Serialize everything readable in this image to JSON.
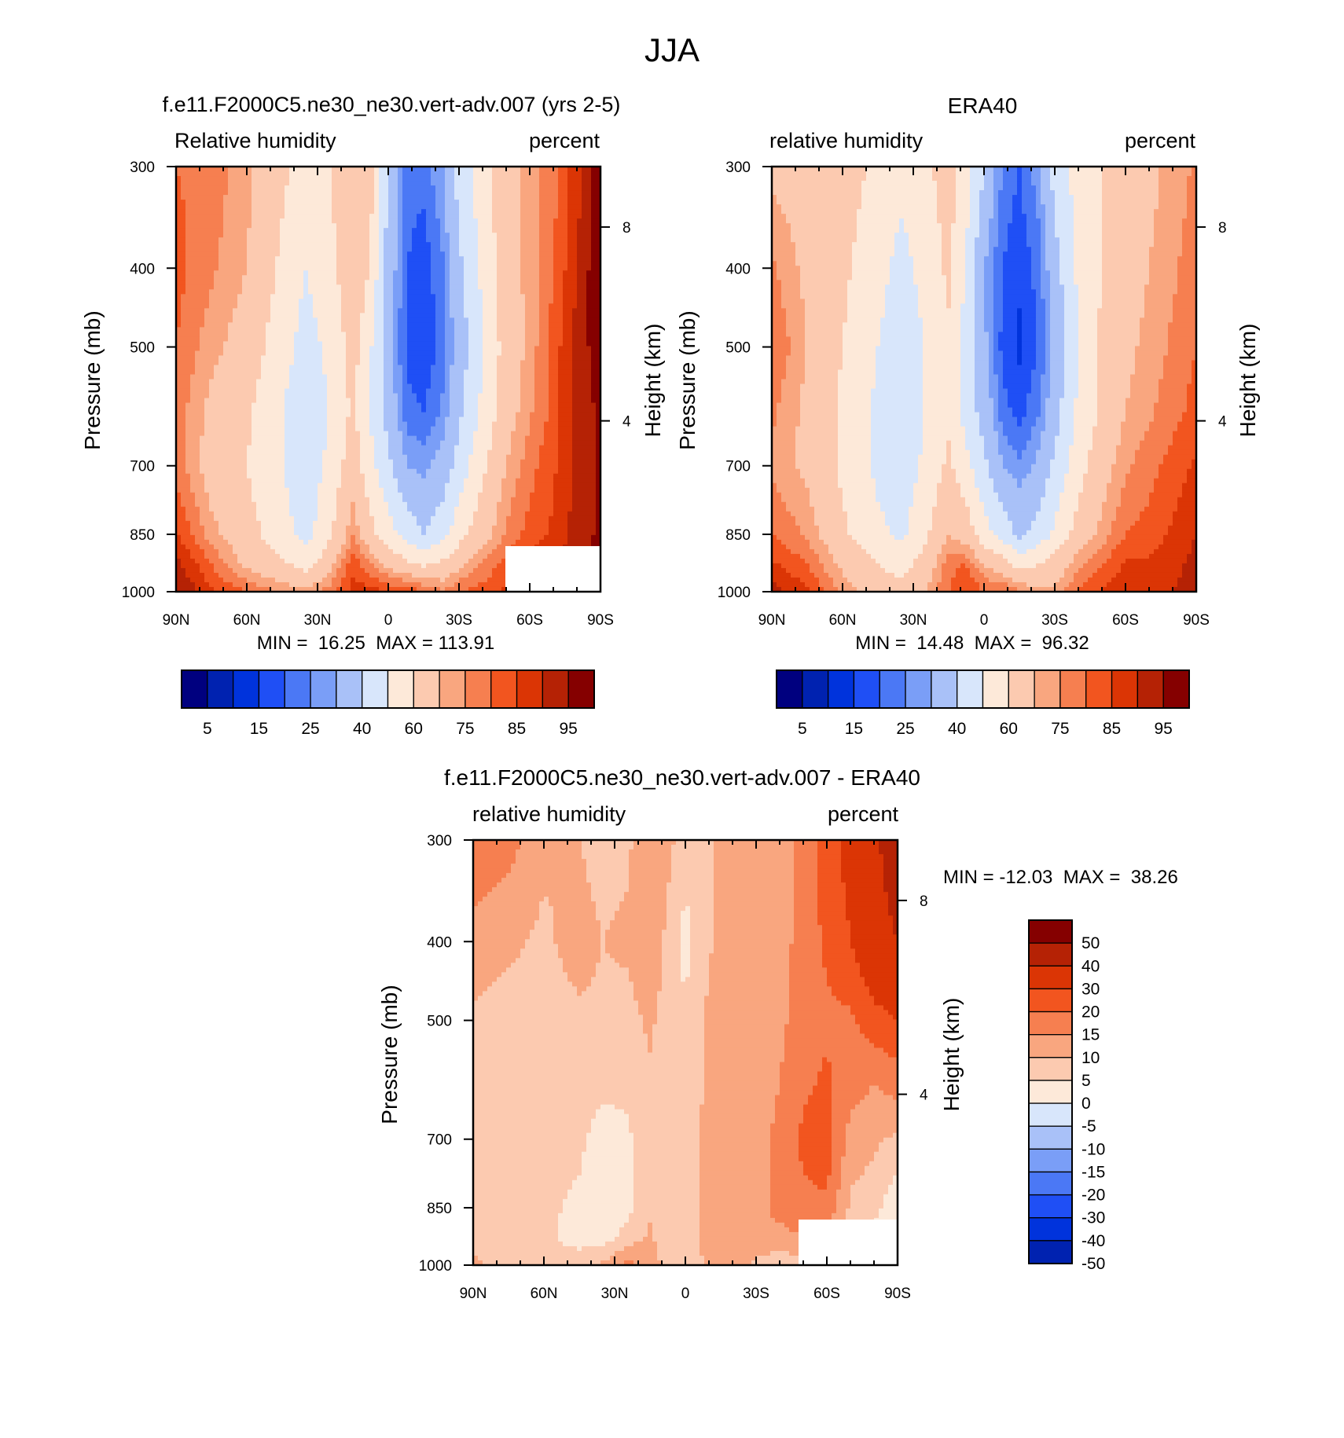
{
  "figure_title": "JJA",
  "colors": {
    "main_levels": [
      5,
      10,
      15,
      20,
      25,
      30,
      40,
      50,
      60,
      70,
      75,
      80,
      85,
      90,
      95
    ],
    "main_labels": [
      "5",
      "15",
      "25",
      "40",
      "60",
      "75",
      "85",
      "95"
    ],
    "main_palette": [
      "#00007f",
      "#0022b0",
      "#0033dc",
      "#1f4ff5",
      "#4b78f5",
      "#7a9ef7",
      "#a9c1f8",
      "#d8e6fb",
      "#fde9d9",
      "#fccab0",
      "#f9a67f",
      "#f67f50",
      "#f2551f",
      "#db3505",
      "#b52205",
      "#850000"
    ],
    "diff_levels": [
      -50,
      -40,
      -30,
      -20,
      -15,
      -10,
      -5,
      0,
      5,
      10,
      15,
      20,
      30,
      40,
      50
    ],
    "diff_labels": [
      "50",
      "40",
      "30",
      "20",
      "15",
      "10",
      "5",
      "0",
      "-5",
      "-10",
      "-15",
      "-20",
      "-30",
      "-40",
      "-50"
    ]
  },
  "chart_data": [
    {
      "type": "heatmap",
      "title": "f.e11.F2000C5.ne30_ne30.vert-adv.007 (yrs 2-5)",
      "left_label": "Relative humidity",
      "right_label": "percent",
      "ylabel": "Pressure (mb)",
      "ylabel2": "Height (km)",
      "x_ticks": [
        "90N",
        "60N",
        "30N",
        "0",
        "30S",
        "60S",
        "90S"
      ],
      "x_values": [
        90,
        60,
        30,
        0,
        -30,
        -60,
        -90
      ],
      "y_ticks": [
        "300",
        "400",
        "500",
        "700",
        "850",
        "1000"
      ],
      "y_values": [
        300,
        400,
        500,
        700,
        850,
        1000
      ],
      "y2_ticks": [
        "8",
        "4"
      ],
      "y2_values": [
        8,
        4
      ],
      "xlim": [
        90,
        -90
      ],
      "ylim": [
        300,
        1000
      ],
      "y_scale": "log",
      "stats": "MIN =  16.25  MAX = 113.91",
      "min": 16.25,
      "max": 113.91,
      "field": [
        {
          "lat": 90,
          "p": [
            80,
            82,
            80,
            78,
            78,
            86,
            92,
            96
          ]
        },
        {
          "lat": 75,
          "p": [
            78,
            76,
            72,
            68,
            66,
            72,
            80,
            86
          ]
        },
        {
          "lat": 60,
          "p": [
            72,
            70,
            66,
            62,
            60,
            64,
            68,
            80
          ]
        },
        {
          "lat": 45,
          "p": [
            62,
            58,
            54,
            50,
            50,
            54,
            62,
            74
          ]
        },
        {
          "lat": 35,
          "p": [
            56,
            50,
            46,
            44,
            44,
            46,
            56,
            72
          ]
        },
        {
          "lat": 25,
          "p": [
            60,
            56,
            52,
            50,
            52,
            58,
            66,
            78
          ]
        },
        {
          "lat": 15,
          "p": [
            70,
            68,
            64,
            62,
            66,
            74,
            84,
            86
          ]
        },
        {
          "lat": 8,
          "p": [
            66,
            60,
            52,
            50,
            54,
            64,
            76,
            88
          ]
        },
        {
          "lat": 0,
          "p": [
            38,
            36,
            34,
            36,
            42,
            54,
            68,
            84
          ]
        },
        {
          "lat": -8,
          "p": [
            22,
            20,
            18,
            22,
            30,
            46,
            62,
            84
          ]
        },
        {
          "lat": -15,
          "p": [
            22,
            17,
            16,
            20,
            28,
            40,
            58,
            80
          ]
        },
        {
          "lat": -23,
          "p": [
            30,
            24,
            22,
            26,
            34,
            46,
            62,
            76
          ]
        },
        {
          "lat": -30,
          "p": [
            44,
            38,
            34,
            38,
            44,
            56,
            68,
            80
          ]
        },
        {
          "lat": -40,
          "p": [
            56,
            52,
            50,
            52,
            58,
            66,
            76,
            82
          ]
        },
        {
          "lat": -50,
          "p": [
            68,
            66,
            64,
            66,
            70,
            76,
            82,
            86
          ]
        },
        {
          "lat": -60,
          "p": [
            72,
            72,
            72,
            74,
            78,
            82,
            88,
            88
          ]
        },
        {
          "lat": -70,
          "p": [
            78,
            80,
            82,
            82,
            84,
            86,
            90,
            92
          ]
        },
        {
          "lat": -80,
          "p": [
            88,
            90,
            92,
            92,
            92,
            92,
            94,
            96
          ]
        },
        {
          "lat": -90,
          "p": [
            98,
            100,
            98,
            96,
            96,
            96,
            98,
            100
          ]
        }
      ]
    },
    {
      "type": "heatmap",
      "title": "ERA40",
      "left_label": "relative humidity",
      "right_label": "percent",
      "ylabel": "Pressure (mb)",
      "ylabel2": "Height (km)",
      "x_ticks": [
        "90N",
        "60N",
        "30N",
        "0",
        "30S",
        "60S",
        "90S"
      ],
      "x_values": [
        90,
        60,
        30,
        0,
        -30,
        -60,
        -90
      ],
      "y_ticks": [
        "300",
        "400",
        "500",
        "700",
        "850",
        "1000"
      ],
      "y_values": [
        300,
        400,
        500,
        700,
        850,
        1000
      ],
      "y2_ticks": [
        "8",
        "4"
      ],
      "y2_values": [
        8,
        4
      ],
      "xlim": [
        90,
        -90
      ],
      "ylim": [
        300,
        1000
      ],
      "y_scale": "log",
      "stats": "MIN =  14.48  MAX =  96.32",
      "min": 14.48,
      "max": 96.32,
      "field": [
        {
          "lat": 90,
          "p": [
            68,
            76,
            80,
            76,
            74,
            80,
            86,
            92
          ]
        },
        {
          "lat": 75,
          "p": [
            66,
            68,
            70,
            68,
            68,
            74,
            80,
            86
          ]
        },
        {
          "lat": 60,
          "p": [
            64,
            62,
            60,
            58,
            58,
            62,
            68,
            74
          ]
        },
        {
          "lat": 45,
          "p": [
            58,
            54,
            50,
            48,
            48,
            52,
            60,
            66
          ]
        },
        {
          "lat": 35,
          "p": [
            54,
            46,
            42,
            42,
            44,
            48,
            56,
            64
          ]
        },
        {
          "lat": 25,
          "p": [
            58,
            54,
            50,
            50,
            52,
            58,
            64,
            70
          ]
        },
        {
          "lat": 15,
          "p": [
            64,
            62,
            58,
            58,
            62,
            70,
            78,
            80
          ]
        },
        {
          "lat": 8,
          "p": [
            56,
            50,
            46,
            46,
            54,
            66,
            80,
            86
          ]
        },
        {
          "lat": 0,
          "p": [
            40,
            30,
            32,
            36,
            42,
            54,
            70,
            80
          ]
        },
        {
          "lat": -8,
          "p": [
            24,
            20,
            18,
            22,
            30,
            46,
            64,
            80
          ]
        },
        {
          "lat": -15,
          "p": [
            20,
            16,
            14,
            18,
            26,
            38,
            56,
            76
          ]
        },
        {
          "lat": -23,
          "p": [
            28,
            22,
            20,
            24,
            32,
            44,
            60,
            72
          ]
        },
        {
          "lat": -30,
          "p": [
            44,
            36,
            32,
            36,
            42,
            52,
            64,
            72
          ]
        },
        {
          "lat": -40,
          "p": [
            54,
            52,
            50,
            52,
            56,
            64,
            74,
            80
          ]
        },
        {
          "lat": -50,
          "p": [
            60,
            60,
            62,
            62,
            66,
            72,
            80,
            86
          ]
        },
        {
          "lat": -60,
          "p": [
            64,
            66,
            68,
            70,
            74,
            80,
            86,
            88
          ]
        },
        {
          "lat": -70,
          "p": [
            68,
            70,
            72,
            74,
            78,
            82,
            86,
            86
          ]
        },
        {
          "lat": -80,
          "p": [
            72,
            74,
            76,
            78,
            82,
            86,
            88,
            90
          ]
        },
        {
          "lat": -90,
          "p": [
            76,
            78,
            80,
            82,
            86,
            90,
            92,
            94
          ]
        }
      ]
    },
    {
      "type": "heatmap",
      "title": "f.e11.F2000C5.ne30_ne30.vert-adv.007 - ERA40",
      "left_label": "relative humidity",
      "right_label": "percent",
      "ylabel": "Pressure (mb)",
      "ylabel2": "Height (km)",
      "x_ticks": [
        "90N",
        "60N",
        "30N",
        "0",
        "30S",
        "60S",
        "90S"
      ],
      "x_values": [
        90,
        60,
        30,
        0,
        -30,
        -60,
        -90
      ],
      "y_ticks": [
        "300",
        "400",
        "500",
        "700",
        "850",
        "1000"
      ],
      "y_values": [
        300,
        400,
        500,
        700,
        850,
        1000
      ],
      "y2_ticks": [
        "8",
        "4"
      ],
      "y2_values": [
        8,
        4
      ],
      "xlim": [
        90,
        -90
      ],
      "ylim": [
        300,
        1000
      ],
      "y_scale": "log",
      "stats": "MIN = -12.03  MAX =  38.26",
      "min": -12.03,
      "max": 38.26,
      "field": [
        {
          "lat": 90,
          "p": [
            14,
            8,
            4,
            3,
            3,
            2,
            4,
            6
          ]
        },
        {
          "lat": 75,
          "p": [
            12,
            6,
            3,
            2,
            2,
            1,
            2,
            3
          ]
        },
        {
          "lat": 60,
          "p": [
            6,
            4,
            3,
            2,
            2,
            1,
            1,
            2
          ]
        },
        {
          "lat": 45,
          "p": [
            5,
            7,
            4,
            2,
            1,
            -1,
            -2,
            3
          ]
        },
        {
          "lat": 35,
          "p": [
            3,
            5,
            4,
            1,
            -2,
            -4,
            -3,
            6
          ]
        },
        {
          "lat": 25,
          "p": [
            4,
            6,
            3,
            1,
            -1,
            -2,
            2,
            12
          ]
        },
        {
          "lat": 15,
          "p": [
            8,
            9,
            6,
            4,
            3,
            4,
            6,
            8
          ]
        },
        {
          "lat": 8,
          "p": [
            7,
            4,
            3,
            2,
            1,
            1,
            2,
            3
          ]
        },
        {
          "lat": 0,
          "p": [
            2,
            -2,
            1,
            2,
            3,
            2,
            2,
            3
          ]
        },
        {
          "lat": -8,
          "p": [
            4,
            4,
            5,
            5,
            6,
            6,
            6,
            5
          ]
        },
        {
          "lat": -15,
          "p": [
            6,
            6,
            7,
            8,
            8,
            8,
            8,
            7
          ]
        },
        {
          "lat": -23,
          "p": [
            6,
            6,
            6,
            7,
            8,
            8,
            8,
            6
          ]
        },
        {
          "lat": -30,
          "p": [
            5,
            6,
            6,
            6,
            7,
            8,
            8,
            4
          ]
        },
        {
          "lat": -40,
          "p": [
            6,
            8,
            9,
            10,
            12,
            12,
            8,
            2
          ]
        },
        {
          "lat": -50,
          "p": [
            12,
            12,
            12,
            14,
            16,
            14,
            10,
            2
          ]
        },
        {
          "lat": -60,
          "p": [
            18,
            16,
            14,
            16,
            18,
            14,
            8,
            4
          ]
        },
        {
          "lat": -70,
          "p": [
            22,
            20,
            14,
            12,
            8,
            4,
            2,
            4
          ]
        },
        {
          "lat": -80,
          "p": [
            28,
            26,
            18,
            10,
            6,
            2,
            -2,
            6
          ]
        },
        {
          "lat": -90,
          "p": [
            36,
            30,
            20,
            12,
            4,
            -4,
            -6,
            8
          ]
        }
      ]
    }
  ]
}
